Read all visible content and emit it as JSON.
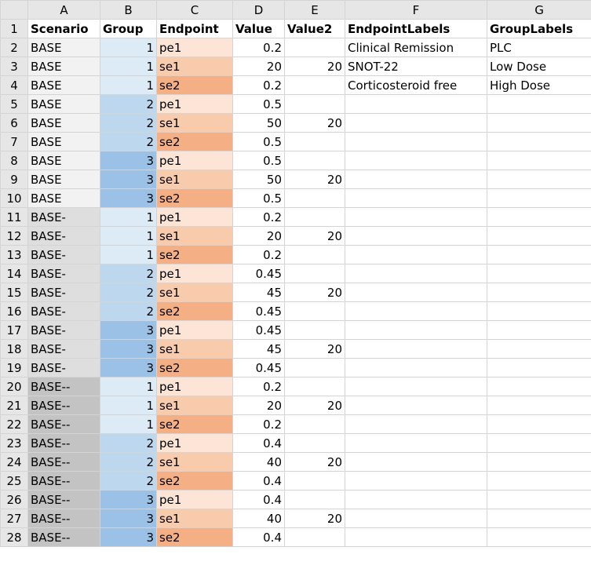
{
  "column_letters": [
    "A",
    "B",
    "C",
    "D",
    "E",
    "F",
    "G"
  ],
  "headers": [
    "Scenario",
    "Group",
    "Endpoint",
    "Value",
    "Value2",
    "EndpointLabels",
    "GroupLabels"
  ],
  "colors": {
    "scenario_base": "#f2f2f2",
    "scenario_base_minus": "#dedede",
    "scenario_base_minus2": "#c3c3c3",
    "group_1": "#ddebf7",
    "group_2": "#bdd7ee",
    "group_3": "#9bc2e6",
    "endpoint_pe1": "#fce4d6",
    "endpoint_se1": "#f8cbad",
    "endpoint_se2": "#f4b084"
  },
  "rows": [
    {
      "n": "2",
      "scenario": "BASE",
      "group": "1",
      "endpoint": "pe1",
      "value": "0.2",
      "value2": "",
      "endpoint_label": "Clinical Remission",
      "group_label": "PLC"
    },
    {
      "n": "3",
      "scenario": "BASE",
      "group": "1",
      "endpoint": "se1",
      "value": "20",
      "value2": "20",
      "endpoint_label": "SNOT-22",
      "group_label": "Low Dose"
    },
    {
      "n": "4",
      "scenario": "BASE",
      "group": "1",
      "endpoint": "se2",
      "value": "0.2",
      "value2": "",
      "endpoint_label": "Corticosteroid free",
      "group_label": "High Dose"
    },
    {
      "n": "5",
      "scenario": "BASE",
      "group": "2",
      "endpoint": "pe1",
      "value": "0.5",
      "value2": "",
      "endpoint_label": "",
      "group_label": ""
    },
    {
      "n": "6",
      "scenario": "BASE",
      "group": "2",
      "endpoint": "se1",
      "value": "50",
      "value2": "20",
      "endpoint_label": "",
      "group_label": ""
    },
    {
      "n": "7",
      "scenario": "BASE",
      "group": "2",
      "endpoint": "se2",
      "value": "0.5",
      "value2": "",
      "endpoint_label": "",
      "group_label": ""
    },
    {
      "n": "8",
      "scenario": "BASE",
      "group": "3",
      "endpoint": "pe1",
      "value": "0.5",
      "value2": "",
      "endpoint_label": "",
      "group_label": ""
    },
    {
      "n": "9",
      "scenario": "BASE",
      "group": "3",
      "endpoint": "se1",
      "value": "50",
      "value2": "20",
      "endpoint_label": "",
      "group_label": ""
    },
    {
      "n": "10",
      "scenario": "BASE",
      "group": "3",
      "endpoint": "se2",
      "value": "0.5",
      "value2": "",
      "endpoint_label": "",
      "group_label": ""
    },
    {
      "n": "11",
      "scenario": "BASE-",
      "group": "1",
      "endpoint": "pe1",
      "value": "0.2",
      "value2": "",
      "endpoint_label": "",
      "group_label": ""
    },
    {
      "n": "12",
      "scenario": "BASE-",
      "group": "1",
      "endpoint": "se1",
      "value": "20",
      "value2": "20",
      "endpoint_label": "",
      "group_label": ""
    },
    {
      "n": "13",
      "scenario": "BASE-",
      "group": "1",
      "endpoint": "se2",
      "value": "0.2",
      "value2": "",
      "endpoint_label": "",
      "group_label": ""
    },
    {
      "n": "14",
      "scenario": "BASE-",
      "group": "2",
      "endpoint": "pe1",
      "value": "0.45",
      "value2": "",
      "endpoint_label": "",
      "group_label": ""
    },
    {
      "n": "15",
      "scenario": "BASE-",
      "group": "2",
      "endpoint": "se1",
      "value": "45",
      "value2": "20",
      "endpoint_label": "",
      "group_label": ""
    },
    {
      "n": "16",
      "scenario": "BASE-",
      "group": "2",
      "endpoint": "se2",
      "value": "0.45",
      "value2": "",
      "endpoint_label": "",
      "group_label": ""
    },
    {
      "n": "17",
      "scenario": "BASE-",
      "group": "3",
      "endpoint": "pe1",
      "value": "0.45",
      "value2": "",
      "endpoint_label": "",
      "group_label": ""
    },
    {
      "n": "18",
      "scenario": "BASE-",
      "group": "3",
      "endpoint": "se1",
      "value": "45",
      "value2": "20",
      "endpoint_label": "",
      "group_label": ""
    },
    {
      "n": "19",
      "scenario": "BASE-",
      "group": "3",
      "endpoint": "se2",
      "value": "0.45",
      "value2": "",
      "endpoint_label": "",
      "group_label": ""
    },
    {
      "n": "20",
      "scenario": "BASE--",
      "group": "1",
      "endpoint": "pe1",
      "value": "0.2",
      "value2": "",
      "endpoint_label": "",
      "group_label": ""
    },
    {
      "n": "21",
      "scenario": "BASE--",
      "group": "1",
      "endpoint": "se1",
      "value": "20",
      "value2": "20",
      "endpoint_label": "",
      "group_label": ""
    },
    {
      "n": "22",
      "scenario": "BASE--",
      "group": "1",
      "endpoint": "se2",
      "value": "0.2",
      "value2": "",
      "endpoint_label": "",
      "group_label": ""
    },
    {
      "n": "23",
      "scenario": "BASE--",
      "group": "2",
      "endpoint": "pe1",
      "value": "0.4",
      "value2": "",
      "endpoint_label": "",
      "group_label": ""
    },
    {
      "n": "24",
      "scenario": "BASE--",
      "group": "2",
      "endpoint": "se1",
      "value": "40",
      "value2": "20",
      "endpoint_label": "",
      "group_label": ""
    },
    {
      "n": "25",
      "scenario": "BASE--",
      "group": "2",
      "endpoint": "se2",
      "value": "0.4",
      "value2": "",
      "endpoint_label": "",
      "group_label": ""
    },
    {
      "n": "26",
      "scenario": "BASE--",
      "group": "3",
      "endpoint": "pe1",
      "value": "0.4",
      "value2": "",
      "endpoint_label": "",
      "group_label": ""
    },
    {
      "n": "27",
      "scenario": "BASE--",
      "group": "3",
      "endpoint": "se1",
      "value": "40",
      "value2": "20",
      "endpoint_label": "",
      "group_label": ""
    },
    {
      "n": "28",
      "scenario": "BASE--",
      "group": "3",
      "endpoint": "se2",
      "value": "0.4",
      "value2": "",
      "endpoint_label": "",
      "group_label": ""
    }
  ]
}
